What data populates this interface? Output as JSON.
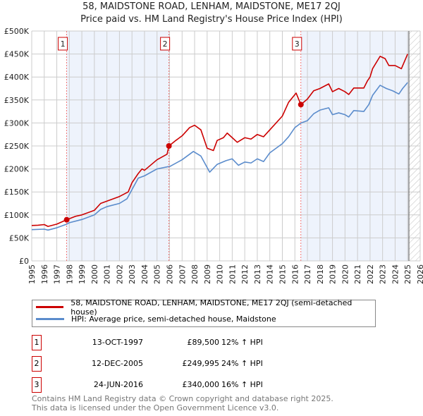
{
  "title": "58, MAIDSTONE ROAD, LENHAM, MAIDSTONE, ME17 2QJ",
  "subtitle": "Price paid vs. HM Land Registry's House Price Index (HPI)",
  "chart_data": {
    "type": "line",
    "xlim": [
      1995,
      2026
    ],
    "ylim": [
      0,
      500000
    ],
    "y_ticks": [
      0,
      50000,
      100000,
      150000,
      200000,
      250000,
      300000,
      350000,
      400000,
      450000,
      500000
    ],
    "y_tick_labels": [
      "£0",
      "£50K",
      "£100K",
      "£150K",
      "£200K",
      "£250K",
      "£300K",
      "£350K",
      "£400K",
      "£450K",
      "£500K"
    ],
    "x_ticks": [
      1995,
      1996,
      1997,
      1998,
      1999,
      2000,
      2001,
      2002,
      2003,
      2004,
      2005,
      2006,
      2007,
      2008,
      2009,
      2010,
      2011,
      2012,
      2013,
      2014,
      2015,
      2016,
      2017,
      2018,
      2019,
      2020,
      2021,
      2022,
      2023,
      2024,
      2025,
      2026
    ],
    "forecast_hatch_from": 2025.1,
    "series": [
      {
        "name": "58, MAIDSTONE ROAD, LENHAM, MAIDSTONE, ME17 2QJ (semi-detached house)",
        "color": "#cc0000",
        "x": [
          1995,
          1995.5,
          1996,
          1996.3,
          1997,
          1997.79,
          1998.5,
          1999,
          2000,
          2000.5,
          2001,
          2002,
          2002.7,
          2003,
          2003.5,
          2003.8,
          2004,
          2005,
          2005.8,
          2005.95,
          2006.5,
          2007,
          2007.6,
          2008,
          2008.5,
          2009,
          2009.5,
          2009.8,
          2010.3,
          2010.6,
          2011,
          2011.4,
          2012,
          2012.5,
          2013,
          2013.5,
          2014,
          2015,
          2015.5,
          2016.1,
          2016.48,
          2017,
          2017.5,
          2018,
          2018.7,
          2019,
          2019.5,
          2020,
          2020.3,
          2020.7,
          2021.5,
          2021.8,
          2022,
          2022.2,
          2022.8,
          2023.2,
          2023.5,
          2024,
          2024.5,
          2025
        ],
        "y": [
          77000,
          77500,
          79000,
          75000,
          80000,
          89500,
          97000,
          100000,
          110000,
          125000,
          130000,
          140000,
          150000,
          170000,
          190000,
          200000,
          197000,
          220000,
          232000,
          249995,
          262000,
          272000,
          290000,
          295000,
          285000,
          245000,
          240000,
          262000,
          268000,
          278000,
          268000,
          258000,
          268000,
          265000,
          275000,
          270000,
          285000,
          315000,
          345000,
          365000,
          340000,
          352000,
          370000,
          375000,
          385000,
          368000,
          375000,
          368000,
          362000,
          376000,
          376000,
          392000,
          400000,
          418000,
          445000,
          440000,
          425000,
          425000,
          418000,
          450000
        ]
      },
      {
        "name": "HPI: Average price, semi-detached house, Maidstone",
        "color": "#5b8ccc",
        "x": [
          1995,
          1996,
          1996.3,
          1997,
          1997.8,
          1998,
          1999,
          2000,
          2000.5,
          2001,
          2002,
          2002.6,
          2003,
          2003.5,
          2004,
          2005,
          2005.9,
          2006,
          2007,
          2007.9,
          2008.5,
          2009.2,
          2009.8,
          2010.5,
          2011,
          2011.5,
          2012,
          2012.5,
          2013,
          2013.5,
          2014,
          2015,
          2015.5,
          2016,
          2016.5,
          2017,
          2017.5,
          2018,
          2018.7,
          2019,
          2019.5,
          2020,
          2020.3,
          2020.7,
          2021.5,
          2021.9,
          2022.2,
          2022.8,
          2023.3,
          2023.8,
          2024.3,
          2024.6,
          2025
        ],
        "y": [
          68000,
          69000,
          67000,
          72000,
          80000,
          83000,
          90000,
          100000,
          112000,
          118000,
          125000,
          135000,
          155000,
          180000,
          185000,
          200000,
          205000,
          205000,
          220000,
          238000,
          228000,
          193000,
          210000,
          218000,
          222000,
          208000,
          215000,
          213000,
          222000,
          216000,
          235000,
          255000,
          270000,
          290000,
          300000,
          305000,
          320000,
          328000,
          333000,
          318000,
          322000,
          318000,
          313000,
          327000,
          325000,
          340000,
          360000,
          382000,
          375000,
          370000,
          363000,
          375000,
          388000
        ]
      }
    ],
    "sales": [
      {
        "label": "1",
        "x": 1997.79,
        "y": 89500
      },
      {
        "label": "2",
        "x": 2005.95,
        "y": 249995
      },
      {
        "label": "3",
        "x": 2016.48,
        "y": 340000
      }
    ]
  },
  "legend": {
    "red": "58, MAIDSTONE ROAD, LENHAM, MAIDSTONE, ME17 2QJ (semi-detached house)",
    "blue": "HPI: Average price, semi-detached house, Maidstone"
  },
  "table": [
    {
      "num": "1",
      "date": "13-OCT-1997",
      "price": "£89,500",
      "hpi": "12% ↑ HPI"
    },
    {
      "num": "2",
      "date": "12-DEC-2005",
      "price": "£249,995",
      "hpi": "24% ↑ HPI"
    },
    {
      "num": "3",
      "date": "24-JUN-2016",
      "price": "£340,000",
      "hpi": "16% ↑ HPI"
    }
  ],
  "footer": [
    "Contains HM Land Registry data © Crown copyright and database right 2025.",
    "This data is licensed under the Open Government Licence v3.0."
  ]
}
